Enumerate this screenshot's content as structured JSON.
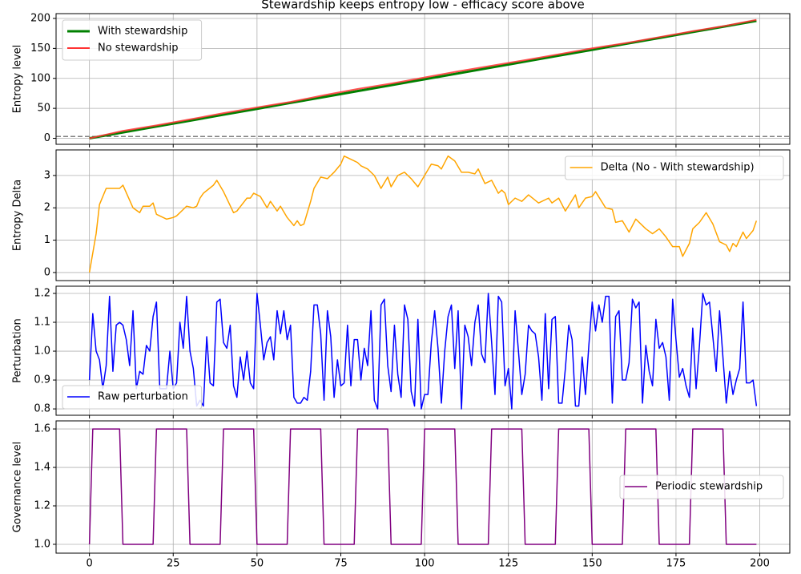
{
  "chart_data": [
    {
      "type": "line",
      "title": "Stewardship keeps entropy low - efficacy score above",
      "ylabel": "Entropy level",
      "x": [
        0,
        10,
        20,
        30,
        40,
        50,
        60,
        70,
        80,
        90,
        100,
        110,
        120,
        130,
        140,
        150,
        160,
        170,
        180,
        190,
        199
      ],
      "series": [
        {
          "name": "With stewardship",
          "color": "#008000",
          "width": 3,
          "values": [
            0,
            9.8,
            19.7,
            29.5,
            39.4,
            49.2,
            59.1,
            68.9,
            78.8,
            88.6,
            98.5,
            108.3,
            118.2,
            128,
            137.9,
            147.7,
            157.6,
            167.4,
            177.3,
            187.1,
            196
          ]
        },
        {
          "name": "No stewardship",
          "color": "#ff3333",
          "width": 2,
          "values": [
            0,
            12.4,
            21.6,
            31.6,
            42,
            51.6,
            60.7,
            71.9,
            82.3,
            91.3,
            101.5,
            111.7,
            121.1,
            130.4,
            140.2,
            150.1,
            158.9,
            168.8,
            178.7,
            187.9,
            197.6
          ]
        }
      ],
      "hline": 3,
      "hline_color": "#808080",
      "ylim": [
        -10,
        208
      ],
      "yticks": [
        0,
        50,
        100,
        150,
        200
      ],
      "grid": true,
      "legend": "upper left"
    },
    {
      "type": "line",
      "ylabel": "Entropy Delta",
      "x": [
        0,
        2,
        3,
        5,
        9,
        10,
        13,
        15,
        16,
        18,
        19,
        20,
        21,
        23,
        25,
        26,
        28,
        29,
        31,
        32,
        33,
        34,
        37,
        38,
        40,
        43,
        44,
        47,
        48,
        49,
        51,
        53,
        54,
        56,
        57,
        59,
        61,
        62,
        63,
        64,
        66,
        67,
        69,
        71,
        73,
        75,
        76,
        79,
        80,
        81,
        83,
        85,
        87,
        89,
        90,
        92,
        94,
        96,
        98,
        100,
        102,
        104,
        105,
        107,
        109,
        111,
        113,
        115,
        116,
        118,
        120,
        122,
        123,
        124,
        125,
        127,
        129,
        131,
        134,
        137,
        138,
        140,
        142,
        145,
        146,
        148,
        150,
        151,
        154,
        156,
        157,
        159,
        161,
        163,
        166,
        168,
        170,
        172,
        174,
        176,
        177,
        179,
        180,
        182,
        184,
        186,
        188,
        190,
        191,
        192,
        193,
        195,
        196,
        198,
        199
      ],
      "series": [
        {
          "name": "Delta (No - With stewardship)",
          "color": "#ffa500",
          "width": 1.5,
          "values": [
            0,
            1.2,
            2.1,
            2.6,
            2.6,
            2.7,
            2.0,
            1.85,
            2.05,
            2.05,
            2.15,
            1.8,
            1.75,
            1.65,
            1.7,
            1.75,
            1.95,
            2.05,
            2.0,
            2.05,
            2.3,
            2.45,
            2.7,
            2.85,
            2.5,
            1.85,
            1.9,
            2.3,
            2.3,
            2.45,
            2.35,
            2.0,
            2.2,
            1.9,
            2.05,
            1.7,
            1.45,
            1.6,
            1.45,
            1.5,
            2.2,
            2.6,
            2.95,
            2.9,
            3.1,
            3.35,
            3.6,
            3.45,
            3.4,
            3.3,
            3.2,
            3.0,
            2.6,
            2.95,
            2.65,
            3.0,
            3.1,
            2.9,
            2.65,
            3.0,
            3.35,
            3.3,
            3.2,
            3.6,
            3.45,
            3.1,
            3.1,
            3.05,
            3.2,
            2.75,
            2.85,
            2.45,
            2.55,
            2.45,
            2.1,
            2.3,
            2.2,
            2.4,
            2.15,
            2.3,
            2.15,
            2.3,
            1.9,
            2.4,
            2.0,
            2.3,
            2.35,
            2.5,
            2.0,
            1.95,
            1.55,
            1.6,
            1.25,
            1.65,
            1.35,
            1.2,
            1.35,
            1.1,
            0.8,
            0.8,
            0.5,
            0.9,
            1.35,
            1.55,
            1.85,
            1.5,
            0.95,
            0.85,
            0.65,
            0.9,
            0.8,
            1.25,
            1.05,
            1.3,
            1.6
          ]
        }
      ],
      "ylim": [
        -0.25,
        3.79
      ],
      "yticks": [
        0,
        1,
        2,
        3
      ],
      "grid": true,
      "legend": "upper right"
    },
    {
      "type": "line",
      "ylabel": "Perturbation",
      "x": [
        0,
        1,
        2,
        3,
        4,
        5,
        6,
        7,
        8,
        9,
        10,
        11,
        12,
        13,
        14,
        15,
        16,
        17,
        18,
        19,
        20,
        21,
        22,
        23,
        24,
        25,
        26,
        27,
        28,
        29,
        30,
        31,
        32,
        33,
        34,
        35,
        36,
        37,
        38,
        39,
        40,
        41,
        42,
        43,
        44,
        45,
        46,
        47,
        48,
        49,
        50,
        51,
        52,
        53,
        54,
        55,
        56,
        57,
        58,
        59,
        60,
        61,
        62,
        63,
        64,
        65,
        66,
        67,
        68,
        69,
        70,
        71,
        72,
        73,
        74,
        75,
        76,
        77,
        78,
        79,
        80,
        81,
        82,
        83,
        84,
        85,
        86,
        87,
        88,
        89,
        90,
        91,
        92,
        93,
        94,
        95,
        96,
        97,
        98,
        99,
        100,
        101,
        102,
        103,
        104,
        105,
        106,
        107,
        108,
        109,
        110,
        111,
        112,
        113,
        114,
        115,
        116,
        117,
        118,
        119,
        120,
        121,
        122,
        123,
        124,
        125,
        126,
        127,
        128,
        129,
        130,
        131,
        132,
        133,
        134,
        135,
        136,
        137,
        138,
        139,
        140,
        141,
        142,
        143,
        144,
        145,
        146,
        147,
        148,
        149,
        150,
        151,
        152,
        153,
        154,
        155,
        156,
        157,
        158,
        159,
        160,
        161,
        162,
        163,
        164,
        165,
        166,
        167,
        168,
        169,
        170,
        171,
        172,
        173,
        174,
        175,
        176,
        177,
        178,
        179,
        180,
        181,
        182,
        183,
        184,
        185,
        186,
        187,
        188,
        189,
        190,
        191,
        192,
        193,
        194,
        195,
        196,
        197,
        198,
        199
      ],
      "series": [
        {
          "name": "Raw perturbation",
          "color": "#0000ff",
          "width": 1.5,
          "values": [
            0.9,
            1.13,
            1.0,
            0.97,
            0.87,
            0.95,
            1.19,
            0.93,
            1.09,
            1.1,
            1.09,
            1.04,
            0.95,
            1.14,
            0.87,
            0.93,
            0.92,
            1.02,
            1.0,
            1.12,
            1.17,
            0.87,
            0.87,
            0.87,
            1.0,
            0.87,
            0.89,
            1.1,
            1.01,
            1.19,
            1.0,
            0.94,
            0.81,
            0.83,
            0.81,
            1.05,
            0.89,
            0.88,
            1.17,
            1.18,
            1.03,
            1.01,
            1.09,
            0.88,
            0.84,
            0.98,
            0.9,
            1.0,
            0.89,
            0.87,
            1.2,
            1.09,
            0.97,
            1.03,
            1.05,
            0.97,
            1.14,
            1.06,
            1.14,
            1.04,
            1.09,
            0.84,
            0.82,
            0.82,
            0.84,
            0.83,
            0.93,
            1.16,
            1.16,
            1.06,
            0.83,
            1.14,
            1.05,
            0.84,
            0.97,
            0.88,
            0.89,
            1.09,
            0.88,
            1.04,
            1.04,
            0.9,
            1.01,
            0.95,
            1.14,
            0.83,
            0.8,
            1.16,
            1.18,
            0.95,
            0.86,
            1.09,
            0.92,
            0.84,
            1.16,
            1.11,
            0.86,
            0.81,
            1.11,
            0.8,
            0.85,
            0.85,
            1.03,
            1.14,
            1.01,
            0.82,
            1.0,
            1.12,
            1.16,
            0.94,
            1.14,
            0.8,
            1.09,
            1.05,
            0.95,
            1.1,
            1.16,
            0.99,
            0.96,
            1.2,
            1.03,
            0.85,
            1.19,
            1.17,
            0.88,
            0.94,
            0.8,
            1.14,
            1.0,
            0.85,
            0.92,
            1.09,
            1.07,
            1.06,
            0.98,
            0.83,
            1.13,
            0.87,
            1.11,
            1.12,
            0.82,
            0.82,
            0.94,
            1.09,
            1.04,
            0.81,
            0.81,
            0.98,
            0.85,
            1.02,
            1.17,
            1.07,
            1.16,
            1.1,
            1.19,
            1.19,
            0.82,
            1.12,
            1.14,
            0.9,
            0.9,
            0.96,
            1.18,
            1.15,
            1.17,
            0.82,
            1.02,
            0.93,
            0.88,
            1.11,
            1.01,
            1.03,
            0.98,
            0.83,
            1.18,
            1.04,
            0.91,
            0.94,
            0.88,
            0.84,
            1.08,
            0.87,
            1.02,
            1.2,
            1.16,
            1.17,
            1.05,
            0.93,
            1.14,
            0.98,
            0.82,
            0.93,
            0.85,
            0.9,
            0.94,
            1.17,
            0.89,
            0.89,
            0.9,
            0.81
          ]
        }
      ],
      "ylim": [
        0.778,
        1.225
      ],
      "yticks": [
        0.8,
        0.9,
        {
          "value": 1,
          "label": "1.0"
        },
        1.1,
        1.2
      ],
      "grid": true,
      "legend": "lower left"
    },
    {
      "type": "line",
      "ylabel": "Governance level",
      "x": [
        0,
        1,
        9,
        10,
        19,
        20,
        29,
        30,
        39,
        40,
        49,
        50,
        59,
        60,
        69,
        70,
        79,
        80,
        89,
        90,
        99,
        100,
        109,
        110,
        119,
        120,
        129,
        130,
        139,
        140,
        149,
        150,
        159,
        160,
        169,
        170,
        179,
        180,
        189,
        190,
        199
      ],
      "series": [
        {
          "name": "Periodic stewardship",
          "color": "#800080",
          "width": 1.5,
          "values": [
            1,
            1.6,
            1.6,
            1,
            1,
            1.6,
            1.6,
            1,
            1,
            1.6,
            1.6,
            1,
            1,
            1.6,
            1.6,
            1,
            1,
            1.6,
            1.6,
            1,
            1,
            1.6,
            1.6,
            1,
            1,
            1.6,
            1.6,
            1,
            1,
            1.6,
            1.6,
            1,
            1,
            1.6,
            1.6,
            1,
            1,
            1.6,
            1.6,
            1,
            1
          ]
        }
      ],
      "ylim": [
        0.954,
        1.642
      ],
      "yticks": [
        {
          "value": 1,
          "label": "1.0"
        },
        1.2,
        1.4,
        1.6
      ],
      "grid": true,
      "legend": "center right",
      "xlim": [
        -9.95,
        208.95
      ],
      "xticks": [
        0,
        25,
        50,
        75,
        100,
        125,
        150,
        175,
        200
      ]
    }
  ]
}
